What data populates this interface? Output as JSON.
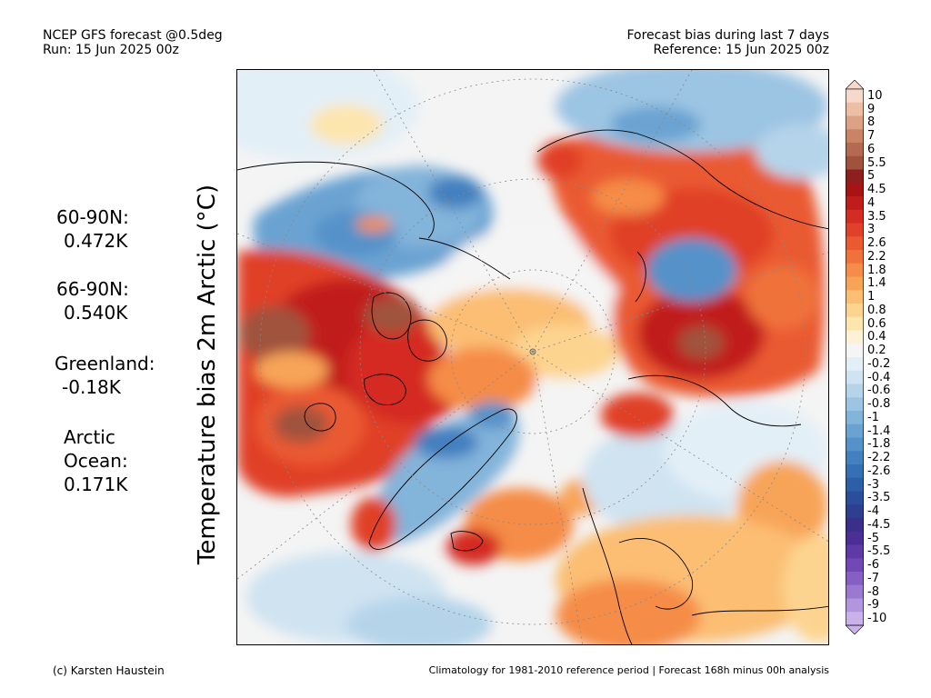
{
  "header": {
    "model": "NCEP GFS forecast @0.5deg",
    "run": "Run: 15 Jun 2025 00z",
    "product": "Forecast bias during last 7 days",
    "reference": "Reference: 15 Jun 2025 00z"
  },
  "stats": [
    {
      "label": "60-90N:",
      "value": "0.472K"
    },
    {
      "label": "66-90N:",
      "value": "0.540K"
    },
    {
      "label": "Greenland:",
      "value": "-0.18K"
    },
    {
      "label": "Arctic",
      "label2": "Ocean:",
      "value": "0.171K"
    }
  ],
  "ylabel": "Temperature bias 2m Arctic (°C)",
  "colorbar": {
    "labels": [
      "10",
      "9",
      "8",
      "7",
      "6",
      "5.5",
      "5",
      "4.5",
      "4",
      "3.5",
      "3",
      "2.6",
      "2.2",
      "1.8",
      "1.4",
      "1",
      "0.8",
      "0.6",
      "0.4",
      "0.2",
      "-0.2",
      "-0.4",
      "-0.6",
      "-0.8",
      "-1",
      "-1.4",
      "-1.8",
      "-2.2",
      "-2.6",
      "-3",
      "-3.5",
      "-4",
      "-4.5",
      "-5",
      "-5.5",
      "-6",
      "-7",
      "-8",
      "-9",
      "-10"
    ],
    "colors": [
      "#f6d9cb",
      "#ecbfa5",
      "#dca285",
      "#c98466",
      "#b46a50",
      "#a0523c",
      "#8e1f1f",
      "#a81414",
      "#c11c1c",
      "#d42b22",
      "#e04128",
      "#ea5a30",
      "#f0723a",
      "#f58c47",
      "#f8a458",
      "#fbbe73",
      "#fdd48f",
      "#fde5ae",
      "#fdf2d6",
      "#f5f5f5",
      "#e3eff7",
      "#cfe3f1",
      "#b5d4ea",
      "#9cc5e3",
      "#83b4da",
      "#6aa3d2",
      "#5592c9",
      "#4380bf",
      "#3570b4",
      "#2c5fa6",
      "#2a4e99",
      "#2d3f8e",
      "#3a2f8a",
      "#4b2f96",
      "#5e3aa6",
      "#7049b5",
      "#8560c4",
      "#9a7ad1",
      "#b195de",
      "#c9b2ea"
    ]
  },
  "footer": {
    "credit": "(c) Karsten Haustein",
    "note": "Climatology for 1981-2010 reference period | Forecast 168h minus 00h analysis"
  }
}
